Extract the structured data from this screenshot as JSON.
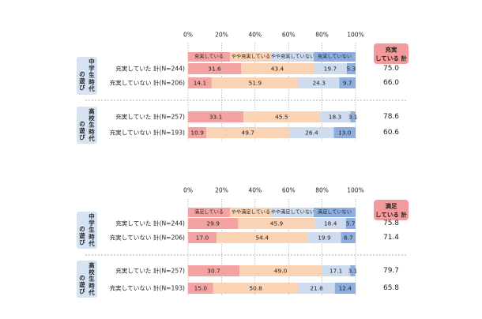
{
  "colors": {
    "seg1": "#f4a3a3",
    "seg2": "#fad2b4",
    "seg3": "#cfdcef",
    "seg4": "#8eaee0",
    "badge": "#f49a9a",
    "group_box": "#d6e3f3",
    "grid": "#9a9a9a",
    "separator": "#999999"
  },
  "chart_data": [
    {
      "type": "bar",
      "orientation": "horizontal-stacked-100",
      "x_ticks": [
        "0%",
        "20%",
        "40%",
        "60%",
        "80%",
        "100%"
      ],
      "xlim": [
        0,
        100
      ],
      "legend": [
        "充実している",
        "やや充実している",
        "やや充実していない",
        "充実していない"
      ],
      "legend_placement": "inside top row",
      "total_header": "充実\nしている 計",
      "groups": [
        {
          "label": "中学生時代の遊び",
          "rows": [
            {
              "label": "充実していた 計(N=244)",
              "values": [
                31.6,
                43.4,
                19.7,
                5.3
              ],
              "total": "75.0"
            },
            {
              "label": "充実していない 計(N=206)",
              "values": [
                14.1,
                51.9,
                24.3,
                9.7
              ],
              "total": "66.0"
            }
          ]
        },
        {
          "label": "高校生時代の遊び",
          "rows": [
            {
              "label": "充実していた 計(N=257)",
              "values": [
                33.1,
                45.5,
                18.3,
                3.1
              ],
              "total": "78.6"
            },
            {
              "label": "充実していない 計(N=193)",
              "values": [
                10.9,
                49.7,
                26.4,
                13.0
              ],
              "total": "60.6"
            }
          ]
        }
      ]
    },
    {
      "type": "bar",
      "orientation": "horizontal-stacked-100",
      "x_ticks": [
        "0%",
        "20%",
        "40%",
        "60%",
        "80%",
        "100%"
      ],
      "xlim": [
        0,
        100
      ],
      "legend": [
        "満足している",
        "やや満足している",
        "やや満足していない",
        "満足していない"
      ],
      "legend_placement": "inside top row",
      "total_header": "満足\nしている 計",
      "groups": [
        {
          "label": "中学生時代の遊び",
          "rows": [
            {
              "label": "充実していた 計(N=244)",
              "values": [
                29.9,
                45.9,
                18.4,
                5.7
              ],
              "total": "75.8"
            },
            {
              "label": "充実していない 計(N=206)",
              "values": [
                17.0,
                54.4,
                19.9,
                8.7
              ],
              "total": "71.4"
            }
          ]
        },
        {
          "label": "高校生時代の遊び",
          "rows": [
            {
              "label": "充実していた 計(N=257)",
              "values": [
                30.7,
                49.0,
                17.1,
                3.1
              ],
              "total": "79.7"
            },
            {
              "label": "充実していない 計(N=193)",
              "values": [
                15.0,
                50.8,
                21.8,
                12.4
              ],
              "total": "65.8"
            }
          ]
        }
      ]
    }
  ]
}
